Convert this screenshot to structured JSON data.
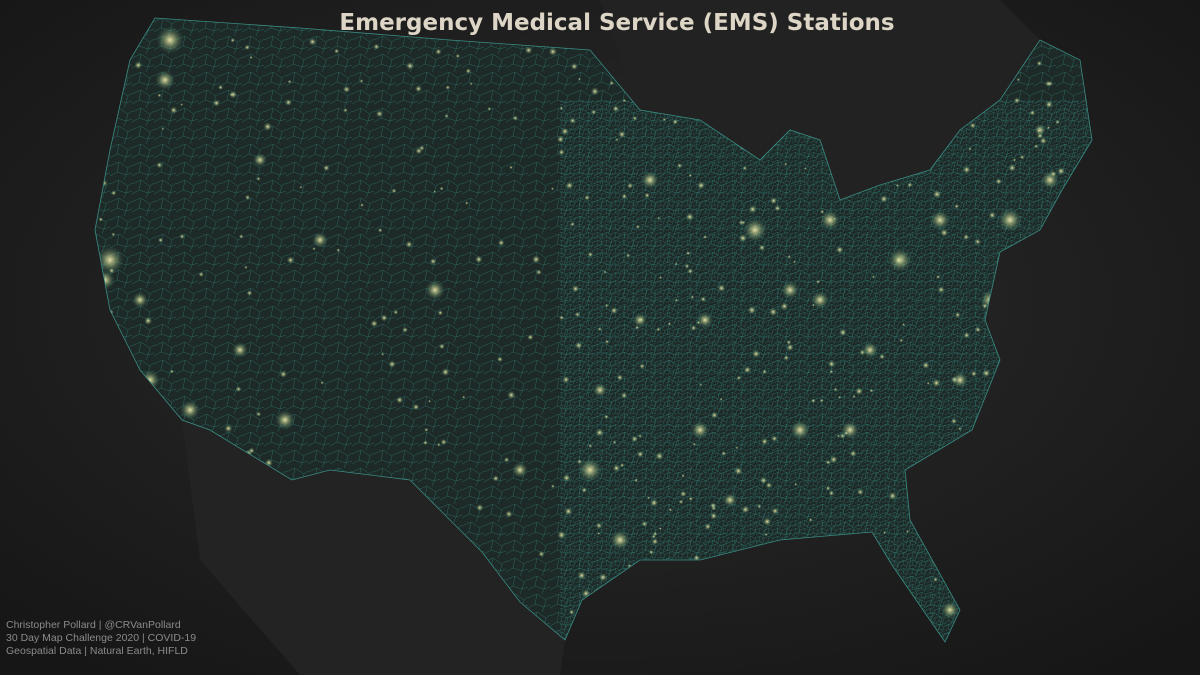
{
  "header": {
    "title": "Emergency Medical Service (EMS) Stations"
  },
  "credits": [
    "Christopher Pollard  | @CRVanPollard",
    "30 Day Map Challenge 2020 | COVID-19",
    "Geospatial Data  | Natural Earth, HIFLD"
  ]
}
